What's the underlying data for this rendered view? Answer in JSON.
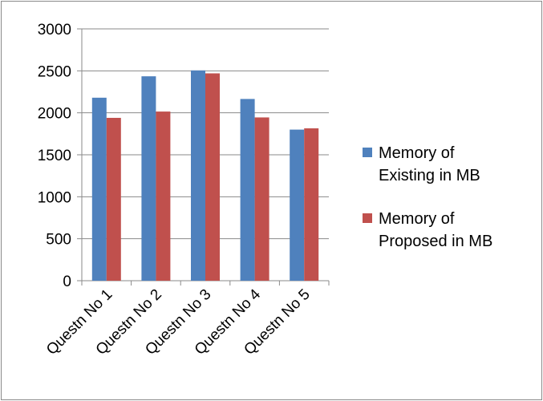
{
  "chart_data": {
    "type": "bar",
    "categories": [
      "Questn No 1",
      "Questn No 2",
      "Questn No 3",
      "Questn No 4",
      "Questn No 5"
    ],
    "series": [
      {
        "name": "Memory of Existing in MB",
        "name_lines": [
          "Memory of",
          "Existing in MB"
        ],
        "color": "#4f81bd",
        "values": [
          2180,
          2435,
          2505,
          2165,
          1800
        ]
      },
      {
        "name": "Memory of Proposed in MB",
        "name_lines": [
          "Memory of",
          "Proposed in MB"
        ],
        "color": "#c0504d",
        "values": [
          1940,
          2015,
          2470,
          1945,
          1815
        ]
      }
    ],
    "ylim": [
      0,
      3000
    ],
    "yticks": [
      0,
      500,
      1000,
      1500,
      2000,
      2500,
      3000
    ],
    "grid": true,
    "legend_position": "right"
  }
}
